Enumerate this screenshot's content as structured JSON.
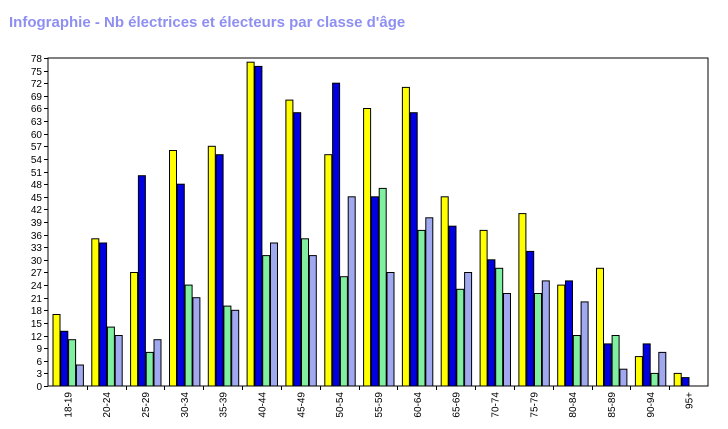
{
  "chart_data": {
    "type": "bar",
    "title": "Infographie - Nb électrices et électeurs par classe d'âge",
    "xlabel": "",
    "ylabel": "",
    "ylim": [
      0,
      78
    ],
    "yticks": [
      0,
      3,
      6,
      9,
      12,
      15,
      18,
      21,
      24,
      27,
      30,
      33,
      36,
      39,
      42,
      45,
      48,
      51,
      54,
      57,
      60,
      63,
      66,
      69,
      72,
      75,
      78
    ],
    "grid": false,
    "legend": "none",
    "categories": [
      "18-19",
      "20-24",
      "25-29",
      "30-34",
      "35-39",
      "40-44",
      "45-49",
      "50-54",
      "55-59",
      "60-64",
      "65-69",
      "70-74",
      "75-79",
      "80-84",
      "85-89",
      "90-94",
      "95+"
    ],
    "series": [
      {
        "color": "#ffff00",
        "values": [
          17,
          35,
          27,
          56,
          57,
          77,
          68,
          55,
          66,
          71,
          45,
          37,
          41,
          24,
          28,
          7,
          3
        ]
      },
      {
        "color": "#0000e0",
        "values": [
          13,
          34,
          50,
          48,
          55,
          76,
          65,
          72,
          45,
          65,
          38,
          30,
          32,
          25,
          10,
          10,
          2
        ]
      },
      {
        "color": "#80f0a0",
        "values": [
          11,
          14,
          8,
          24,
          19,
          31,
          35,
          26,
          47,
          37,
          23,
          28,
          22,
          12,
          12,
          3,
          0
        ]
      },
      {
        "color": "#a0a8f0",
        "values": [
          5,
          12,
          11,
          21,
          18,
          34,
          31,
          45,
          27,
          40,
          27,
          22,
          25,
          20,
          4,
          8,
          0
        ]
      }
    ]
  }
}
